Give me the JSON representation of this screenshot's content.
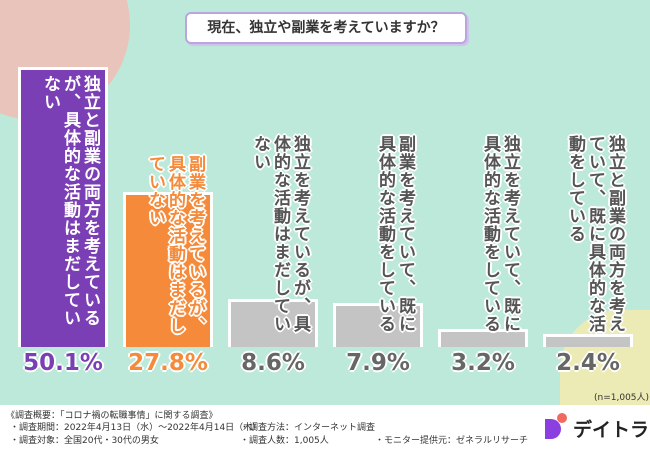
{
  "title": "現在、独立や副業を考えていますか？",
  "chart_data": {
    "type": "bar",
    "title": "現在、独立や副業を考えていますか？",
    "categories": [
      "独立と副業の両方を考えているが、具体的な活動はまだしていない",
      "副業を考えているが、具体的な活動はまだしていない",
      "独立を考えているが、具体的な活動はまだしていない",
      "副業を考えていて、既に具体的な活動をしている",
      "独立を考えていて、既に具体的な活動をしている",
      "独立と副業の両方を考えていて、既に具体的な活動をしている"
    ],
    "values": [
      50.1,
      27.8,
      8.6,
      7.9,
      3.2,
      2.4
    ],
    "value_labels": [
      "50.1%",
      "27.8%",
      "8.6%",
      "7.9%",
      "3.2%",
      "2.4%"
    ],
    "colors": [
      "#7b3fb5",
      "#f58a3a",
      "#c4c4c4",
      "#c4c4c4",
      "#c4c4c4",
      "#c4c4c4"
    ],
    "text_colors": [
      "#ffffff",
      "#f58a3a",
      "#555555",
      "#555555",
      "#555555",
      "#555555"
    ],
    "value_colors": [
      "#7b3fb5",
      "#f58a3a",
      "#666666",
      "#666666",
      "#666666",
      "#666666"
    ],
    "ylim": [
      0,
      55
    ],
    "note": "(n=1,005人)"
  },
  "footer": {
    "heading": "《調査概要：「コロナ禍の転職事情」に関する調査》",
    "period": "・調査期間：2022年4月13日（水）～2022年4月14日（木）",
    "method": "・調査方法：インターネット調査",
    "target": "・調査対象：全国20代・30代の男女",
    "count": "・調査人数：1,005人",
    "provider": "・モニター提供元：ゼネラルリサーチ"
  },
  "logo": "デイトラ"
}
